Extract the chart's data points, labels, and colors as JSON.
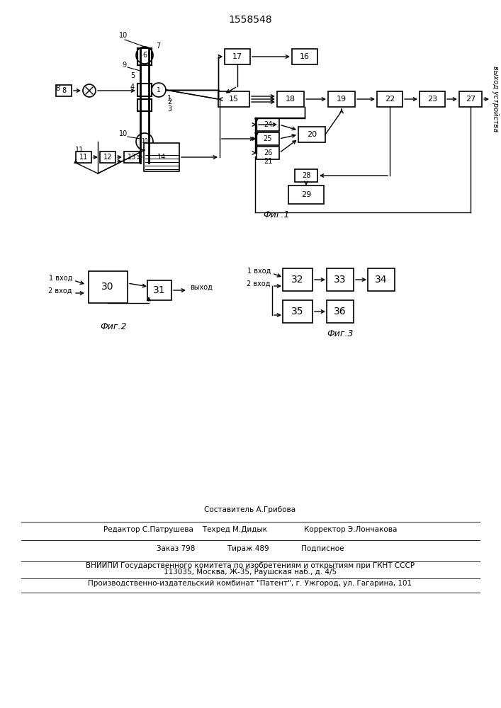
{
  "title": "1558548",
  "bg": "#ffffff",
  "fig1_label": "Фиг.1",
  "fig2_label": "Фиг.2",
  "fig3_label": "Фиг.3",
  "footer_line1": "Составитель А.Грибова",
  "footer_line2": "Редактор С.Патрушева    Техред М.Дидык                Корректор Э.Лончакова",
  "footer_line3": "Заказ 798              Тираж 489              Подписное",
  "footer_line4": "ВНИИПИ Государственного комитета по изобретениям и открытиям при ГКНТ СССР",
  "footer_line5": "113035, Москва, Ж-35, Раушская наб., д. 4/5",
  "footer_line6": "Производственно-издательский комбинат \"Патент\", г. Ужгород, ул. Гагарина, 101",
  "vyhod": "выход устройства",
  "vhod1": "1 вход",
  "vhod2": "2 вход",
  "vyhod_out": "выход"
}
